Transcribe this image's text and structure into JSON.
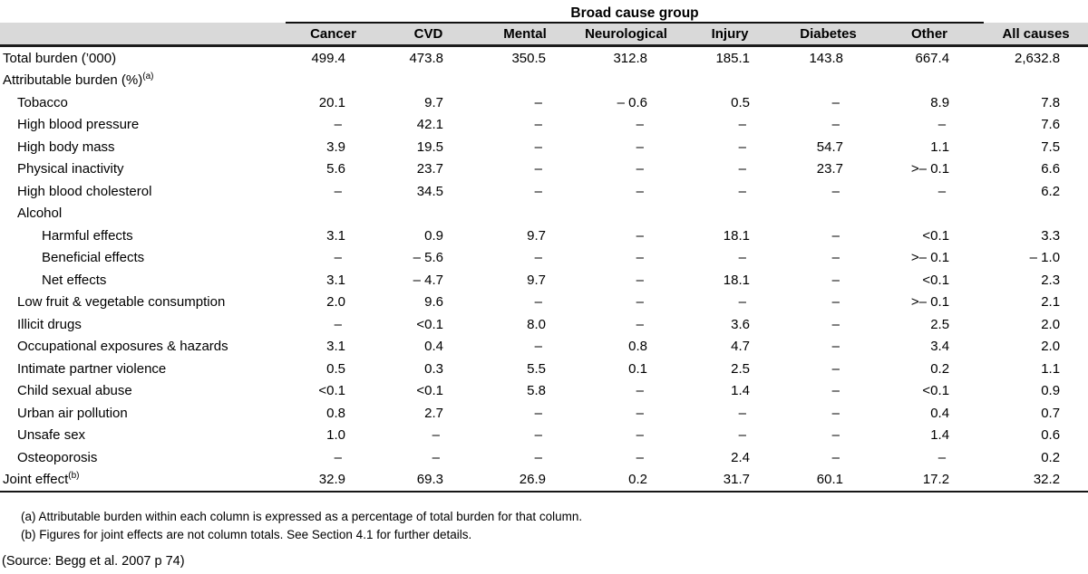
{
  "table": {
    "spanner_label": "Broad cause group",
    "columns": [
      "Cancer",
      "CVD",
      "Mental",
      "Neurological",
      "Injury",
      "Diabetes",
      "Other",
      "All causes"
    ],
    "rows": [
      {
        "label": "Total burden (’000)",
        "indent": 0,
        "values": [
          "499.4",
          "473.8",
          "350.5",
          "312.8",
          "185.1",
          "143.8",
          "667.4",
          "2,632.8"
        ]
      },
      {
        "label": "Attributable burden (%)",
        "indent": 0,
        "sup": "(a)",
        "values": [
          "",
          "",
          "",
          "",
          "",
          "",
          "",
          ""
        ]
      },
      {
        "label": "Tobacco",
        "indent": 1,
        "values": [
          "20.1",
          "9.7",
          "–",
          "– 0.6",
          "0.5",
          "–",
          "8.9",
          "7.8"
        ]
      },
      {
        "label": "High blood pressure",
        "indent": 1,
        "values": [
          "–",
          "42.1",
          "–",
          "–",
          "–",
          "–",
          "–",
          "7.6"
        ]
      },
      {
        "label": "High body mass",
        "indent": 1,
        "values": [
          "3.9",
          "19.5",
          "–",
          "–",
          "–",
          "54.7",
          "1.1",
          "7.5"
        ]
      },
      {
        "label": "Physical inactivity",
        "indent": 1,
        "values": [
          "5.6",
          "23.7",
          "–",
          "–",
          "–",
          "23.7",
          ">– 0.1",
          "6.6"
        ]
      },
      {
        "label": "High blood cholesterol",
        "indent": 1,
        "values": [
          "–",
          "34.5",
          "–",
          "–",
          "–",
          "–",
          "–",
          "6.2"
        ]
      },
      {
        "label": "Alcohol",
        "indent": 1,
        "values": [
          "",
          "",
          "",
          "",
          "",
          "",
          "",
          ""
        ]
      },
      {
        "label": "Harmful effects",
        "indent": 2,
        "values": [
          "3.1",
          "0.9",
          "9.7",
          "–",
          "18.1",
          "–",
          "<0.1",
          "3.3"
        ]
      },
      {
        "label": "Beneficial effects",
        "indent": 2,
        "values": [
          "–",
          "– 5.6",
          "–",
          "–",
          "–",
          "–",
          ">– 0.1",
          "– 1.0"
        ]
      },
      {
        "label": "Net effects",
        "indent": 2,
        "values": [
          "3.1",
          "– 4.7",
          "9.7",
          "–",
          "18.1",
          "–",
          "<0.1",
          "2.3"
        ]
      },
      {
        "label": "Low fruit & vegetable consumption",
        "indent": 1,
        "values": [
          "2.0",
          "9.6",
          "–",
          "–",
          "–",
          "–",
          ">– 0.1",
          "2.1"
        ]
      },
      {
        "label": "Illicit drugs",
        "indent": 1,
        "values": [
          "–",
          "<0.1",
          "8.0",
          "–",
          "3.6",
          "–",
          "2.5",
          "2.0"
        ]
      },
      {
        "label": "Occupational exposures & hazards",
        "indent": 1,
        "values": [
          "3.1",
          "0.4",
          "–",
          "0.8",
          "4.7",
          "–",
          "3.4",
          "2.0"
        ]
      },
      {
        "label": "Intimate partner violence",
        "indent": 1,
        "values": [
          "0.5",
          "0.3",
          "5.5",
          "0.1",
          "2.5",
          "–",
          "0.2",
          "1.1"
        ]
      },
      {
        "label": "Child sexual abuse",
        "indent": 1,
        "values": [
          "<0.1",
          "<0.1",
          "5.8",
          "–",
          "1.4",
          "–",
          "<0.1",
          "0.9"
        ]
      },
      {
        "label": "Urban air pollution",
        "indent": 1,
        "values": [
          "0.8",
          "2.7",
          "–",
          "–",
          "–",
          "–",
          "0.4",
          "0.7"
        ]
      },
      {
        "label": "Unsafe sex",
        "indent": 1,
        "values": [
          "1.0",
          "–",
          "–",
          "–",
          "–",
          "–",
          "1.4",
          "0.6"
        ]
      },
      {
        "label": "Osteoporosis",
        "indent": 1,
        "values": [
          "–",
          "–",
          "–",
          "–",
          "2.4",
          "–",
          "–",
          "0.2"
        ]
      },
      {
        "label": "Joint effect",
        "indent": 0,
        "sup": "(b)",
        "values": [
          "32.9",
          "69.3",
          "26.9",
          "0.2",
          "31.7",
          "60.1",
          "17.2",
          "32.2"
        ]
      }
    ]
  },
  "footnotes": [
    "(a) Attributable burden within each column is expressed as a percentage of total burden for that column.",
    "(b) Figures for joint effects are not column totals. See Section 4.1 for further details."
  ],
  "source": "(Source: Begg et al. 2007 p 74)",
  "colors": {
    "header_band": "#d9d9d9",
    "rule": "#1c1c1c",
    "text": "#000000",
    "background": "#ffffff"
  }
}
